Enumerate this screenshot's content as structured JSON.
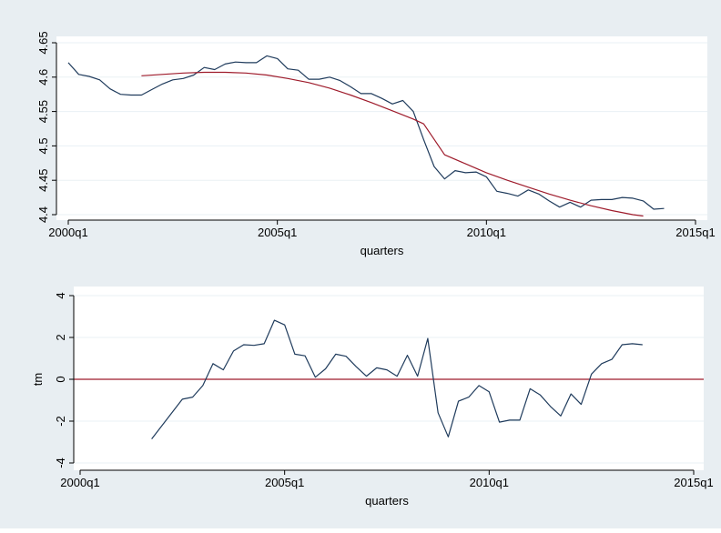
{
  "colors": {
    "outer_bg": "#e8eef2",
    "plot_bg": "#ffffff",
    "gridline": "#eaf0f4",
    "series": "#1f3b5c",
    "fit": "#9e1b2b"
  },
  "chart_data": [
    {
      "type": "line",
      "title": "",
      "xlabel": "quarters",
      "ylabel": "",
      "xlim": [
        2000.0,
        2015.0
      ],
      "ylim": [
        4.4,
        4.65
      ],
      "x_ticks": [
        {
          "value": 2000.0,
          "label": "2000q1"
        },
        {
          "value": 2005.0,
          "label": "2005q1"
        },
        {
          "value": 2010.0,
          "label": "2010q1"
        },
        {
          "value": 2015.0,
          "label": "2015q1"
        }
      ],
      "y_ticks": [
        {
          "value": 4.4,
          "label": "4.4"
        },
        {
          "value": 4.45,
          "label": "4.45"
        },
        {
          "value": 4.5,
          "label": "4.5"
        },
        {
          "value": 4.55,
          "label": "4.55"
        },
        {
          "value": 4.6,
          "label": "4.6"
        },
        {
          "value": 4.65,
          "label": "4.65"
        }
      ],
      "grid": true,
      "series": [
        {
          "color": "#1f3b5c",
          "x": [
            2000.0,
            2000.25,
            2000.5,
            2000.75,
            2001.0,
            2001.25,
            2001.5,
            2001.75,
            2002.0,
            2002.25,
            2002.5,
            2002.75,
            2003.0,
            2003.25,
            2003.5,
            2003.75,
            2004.0,
            2004.25,
            2004.5,
            2004.75,
            2005.0,
            2005.25,
            2005.5,
            2005.75,
            2006.0,
            2006.25,
            2006.5,
            2006.75,
            2007.0,
            2007.25,
            2007.5,
            2007.75,
            2008.0,
            2008.25,
            2008.5,
            2008.75,
            2009.0,
            2009.25,
            2009.5,
            2009.75,
            2010.0,
            2010.25,
            2010.5,
            2010.75,
            2011.0,
            2011.25,
            2011.5,
            2011.75,
            2012.0,
            2012.25,
            2012.5,
            2012.75,
            2013.0,
            2013.25,
            2013.5,
            2013.75,
            2014.0,
            2014.25
          ],
          "y": [
            4.621,
            4.604,
            4.601,
            4.596,
            4.583,
            4.575,
            4.574,
            4.574,
            4.582,
            4.59,
            4.596,
            4.598,
            4.603,
            4.614,
            4.611,
            4.619,
            4.622,
            4.621,
            4.621,
            4.631,
            4.627,
            4.612,
            4.61,
            4.597,
            4.597,
            4.6,
            4.595,
            4.586,
            4.576,
            4.576,
            4.569,
            4.561,
            4.566,
            4.55,
            4.509,
            4.47,
            4.452,
            4.464,
            4.461,
            4.462,
            4.455,
            4.434,
            4.431,
            4.427,
            4.436,
            4.43,
            4.42,
            4.411,
            4.418,
            4.411,
            4.421,
            4.422,
            4.422,
            4.425,
            4.424,
            4.42,
            4.408,
            4.409
          ]
        },
        {
          "color": "#9e1b2b",
          "x": [
            2001.75,
            2002.25,
            2002.75,
            2003.25,
            2003.75,
            2004.25,
            2004.75,
            2005.25,
            2005.75,
            2006.25,
            2006.75,
            2007.25,
            2007.75,
            2008.25,
            2008.5,
            2009.0,
            2009.5,
            2010.0,
            2010.5,
            2011.0,
            2011.5,
            2012.0,
            2012.5,
            2013.0,
            2013.5,
            2013.75
          ],
          "y": [
            4.602,
            4.604,
            4.606,
            4.607,
            4.607,
            4.606,
            4.603,
            4.598,
            4.592,
            4.584,
            4.574,
            4.563,
            4.551,
            4.539,
            4.532,
            4.487,
            4.474,
            4.461,
            4.45,
            4.44,
            4.43,
            4.421,
            4.413,
            4.406,
            4.4,
            4.398
          ]
        }
      ]
    },
    {
      "type": "line",
      "title": "",
      "xlabel": "quarters",
      "ylabel": "tm",
      "xlim": [
        2000.0,
        2015.0
      ],
      "ylim": [
        -4,
        4
      ],
      "x_ticks": [
        {
          "value": 2000.0,
          "label": "2000q1"
        },
        {
          "value": 2005.0,
          "label": "2005q1"
        },
        {
          "value": 2010.0,
          "label": "2010q1"
        },
        {
          "value": 2015.0,
          "label": "2015q1"
        }
      ],
      "y_ticks": [
        {
          "value": -4,
          "label": "-4"
        },
        {
          "value": -2,
          "label": "-2"
        },
        {
          "value": 0,
          "label": "0"
        },
        {
          "value": 2,
          "label": "2"
        },
        {
          "value": 4,
          "label": "4"
        }
      ],
      "grid": true,
      "reference_line": {
        "value": 0,
        "color": "#9e1b2b"
      },
      "series": [
        {
          "color": "#1f3b5c",
          "x": [
            2001.75,
            2002.5,
            2002.75,
            2003.0,
            2003.25,
            2003.5,
            2003.75,
            2004.0,
            2004.25,
            2004.5,
            2004.75,
            2005.0,
            2005.25,
            2005.5,
            2005.75,
            2006.0,
            2006.25,
            2006.5,
            2006.75,
            2007.0,
            2007.25,
            2007.5,
            2007.75,
            2008.0,
            2008.25,
            2008.5,
            2008.75,
            2009.0,
            2009.25,
            2009.5,
            2009.75,
            2010.0,
            2010.25,
            2010.5,
            2010.75,
            2011.0,
            2011.25,
            2011.5,
            2011.75,
            2012.0,
            2012.25,
            2012.5,
            2012.75,
            2013.0,
            2013.25,
            2013.5,
            2013.75
          ],
          "y": [
            -2.85,
            -0.95,
            -0.85,
            -0.3,
            0.75,
            0.45,
            1.35,
            1.65,
            1.62,
            1.7,
            2.82,
            2.6,
            1.2,
            1.12,
            0.1,
            0.5,
            1.2,
            1.1,
            0.6,
            0.15,
            0.55,
            0.45,
            0.15,
            1.15,
            0.15,
            1.95,
            -1.6,
            -2.75,
            -1.05,
            -0.85,
            -0.3,
            -0.6,
            -2.05,
            -1.95,
            -1.95,
            -0.45,
            -0.75,
            -1.3,
            -1.75,
            -0.7,
            -1.2,
            0.25,
            0.75,
            0.95,
            1.65,
            1.7,
            1.65
          ]
        }
      ]
    }
  ]
}
